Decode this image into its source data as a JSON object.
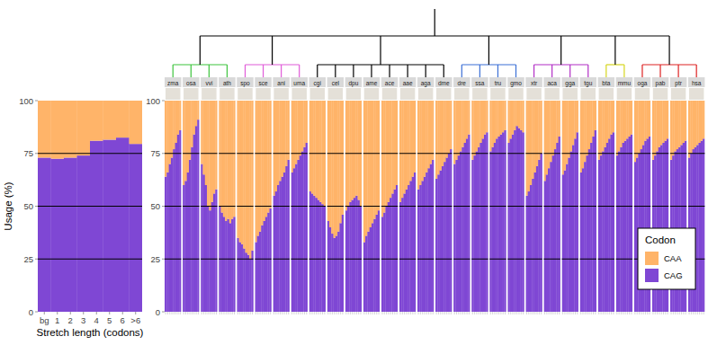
{
  "chart_data": [
    {
      "type": "bar",
      "stacked": true,
      "categories": [
        "bg",
        "1",
        "2",
        "3",
        "4",
        "5",
        "6",
        ">6"
      ],
      "series": [
        {
          "name": "CAA",
          "color": "#ffb469",
          "values": [
            27,
            27.5,
            27,
            26,
            19,
            18.5,
            17.5,
            20.5
          ]
        },
        {
          "name": "CAG",
          "color": "#7f47d4",
          "values": [
            73,
            72.5,
            73,
            74,
            81,
            81.5,
            82.5,
            79.5
          ]
        }
      ],
      "ylim": [
        0,
        100
      ],
      "yticks": [
        0,
        25,
        50,
        75,
        100
      ],
      "grid": true,
      "y_label": "Usage (%)",
      "x_label": "Stretch length (codons)"
    },
    {
      "type": "bar",
      "stacked": true,
      "panels": [
        "zma",
        "osa",
        "vvi",
        "ath",
        "spo",
        "sce",
        "ani",
        "uma",
        "cgi",
        "cel",
        "dpu",
        "ame",
        "ace",
        "aae",
        "aga",
        "dme",
        "dre",
        "ssa",
        "tru",
        "gmo",
        "xtr",
        "aca",
        "gga",
        "tgu",
        "bta",
        "mmu",
        "oga",
        "pab",
        "ptr",
        "hsa"
      ],
      "series": [
        {
          "name": "CAA",
          "color": "#ffb469",
          "values": [
            [
              36,
              34,
              30,
              27,
              23,
              20,
              16,
              14
            ],
            [
              40,
              38,
              34,
              28,
              22,
              16,
              12,
              9
            ],
            [
              30,
              35,
              40,
              50,
              52,
              48,
              44,
              42
            ],
            [
              50,
              53,
              55,
              57,
              56,
              58,
              56,
              55
            ],
            [
              65,
              67,
              68,
              70,
              72,
              73,
              75,
              71
            ],
            [
              67,
              64,
              62,
              59,
              57,
              55,
              53,
              51
            ],
            [
              45,
              43,
              40,
              38,
              36,
              34,
              31,
              28
            ],
            [
              34,
              32,
              30,
              28,
              26,
              24,
              22,
              20
            ],
            [
              43,
              44,
              45,
              46,
              47,
              48,
              49,
              50
            ],
            [
              57,
              60,
              63,
              65,
              64,
              62,
              58,
              54
            ],
            [
              52,
              50,
              48,
              47,
              46,
              45,
              47,
              50
            ],
            [
              67,
              64,
              62,
              60,
              58,
              56,
              54,
              52
            ],
            [
              55,
              53,
              50,
              48,
              46,
              44,
              42,
              40
            ],
            [
              48,
              46,
              44,
              42,
              40,
              38,
              36,
              34
            ],
            [
              42,
              40,
              38,
              36,
              34,
              32,
              30,
              28
            ],
            [
              37,
              35,
              33,
              31,
              29,
              27,
              25,
              23
            ],
            [
              30,
              28,
              26,
              24,
              22,
              20,
              18,
              16
            ],
            [
              28,
              26,
              24,
              22,
              20,
              18,
              16,
              15
            ],
            [
              24,
              22,
              20,
              18,
              17,
              16,
              15,
              14
            ],
            [
              20,
              18,
              16,
              14,
              12,
              13,
              14,
              15
            ],
            [
              45,
              43,
              40,
              37,
              34,
              31,
              28,
              25
            ],
            [
              38,
              35,
              32,
              29,
              26,
              23,
              20,
              17
            ],
            [
              35,
              33,
              30,
              27,
              24,
              21,
              18,
              15
            ],
            [
              34,
              32,
              29,
              26,
              23,
              20,
              17,
              14
            ],
            [
              28,
              26,
              24,
              22,
              20,
              18,
              16,
              15
            ],
            [
              26,
              24,
              22,
              20,
              19,
              18,
              17,
              16
            ],
            [
              29,
              27,
              25,
              23,
              21,
              19,
              18,
              17
            ],
            [
              28,
              26,
              24,
              22,
              21,
              20,
              19,
              18
            ],
            [
              28,
              26,
              24,
              23,
              22,
              21,
              20,
              19
            ],
            [
              27,
              25,
              23,
              22,
              21,
              20,
              19,
              18
            ]
          ]
        },
        {
          "name": "CAG",
          "color": "#7f47d4",
          "values": [
            [
              64,
              66,
              70,
              73,
              77,
              80,
              84,
              86
            ],
            [
              60,
              62,
              66,
              72,
              78,
              84,
              88,
              91
            ],
            [
              70,
              65,
              60,
              50,
              48,
              52,
              56,
              58
            ],
            [
              50,
              47,
              45,
              43,
              44,
              42,
              44,
              45
            ],
            [
              35,
              33,
              32,
              30,
              28,
              27,
              25,
              29
            ],
            [
              33,
              36,
              38,
              41,
              43,
              45,
              47,
              49
            ],
            [
              55,
              57,
              60,
              62,
              64,
              66,
              69,
              72
            ],
            [
              66,
              68,
              70,
              72,
              74,
              76,
              78,
              80
            ],
            [
              57,
              56,
              55,
              54,
              53,
              52,
              51,
              50
            ],
            [
              43,
              40,
              37,
              35,
              36,
              38,
              42,
              46
            ],
            [
              48,
              50,
              52,
              53,
              54,
              55,
              53,
              50
            ],
            [
              33,
              36,
              38,
              40,
              42,
              44,
              46,
              48
            ],
            [
              45,
              47,
              50,
              52,
              54,
              56,
              58,
              60
            ],
            [
              52,
              54,
              56,
              58,
              60,
              62,
              64,
              66
            ],
            [
              58,
              60,
              62,
              64,
              66,
              68,
              70,
              72
            ],
            [
              63,
              65,
              67,
              69,
              71,
              73,
              75,
              77
            ],
            [
              70,
              72,
              74,
              76,
              78,
              80,
              82,
              84
            ],
            [
              72,
              74,
              76,
              78,
              80,
              82,
              84,
              85
            ],
            [
              76,
              78,
              80,
              82,
              83,
              84,
              85,
              86
            ],
            [
              80,
              82,
              84,
              86,
              88,
              87,
              86,
              85
            ],
            [
              55,
              57,
              60,
              63,
              66,
              69,
              72,
              75
            ],
            [
              62,
              65,
              68,
              71,
              74,
              77,
              80,
              83
            ],
            [
              65,
              67,
              70,
              73,
              76,
              79,
              82,
              85
            ],
            [
              66,
              68,
              71,
              74,
              77,
              80,
              83,
              86
            ],
            [
              72,
              74,
              76,
              78,
              80,
              82,
              84,
              85
            ],
            [
              74,
              76,
              78,
              80,
              81,
              82,
              83,
              84
            ],
            [
              71,
              73,
              75,
              77,
              79,
              81,
              82,
              83
            ],
            [
              72,
              74,
              76,
              78,
              79,
              80,
              81,
              82
            ],
            [
              72,
              74,
              76,
              77,
              78,
              79,
              80,
              81
            ],
            [
              73,
              75,
              77,
              78,
              79,
              80,
              81,
              82
            ]
          ]
        }
      ],
      "ylim": [
        0,
        100
      ],
      "yticks": [
        0,
        25,
        50,
        75,
        100
      ],
      "grid": true,
      "tick_labels": "y",
      "legend": "bottom-right",
      "legend_title": "Codon"
    }
  ]
}
